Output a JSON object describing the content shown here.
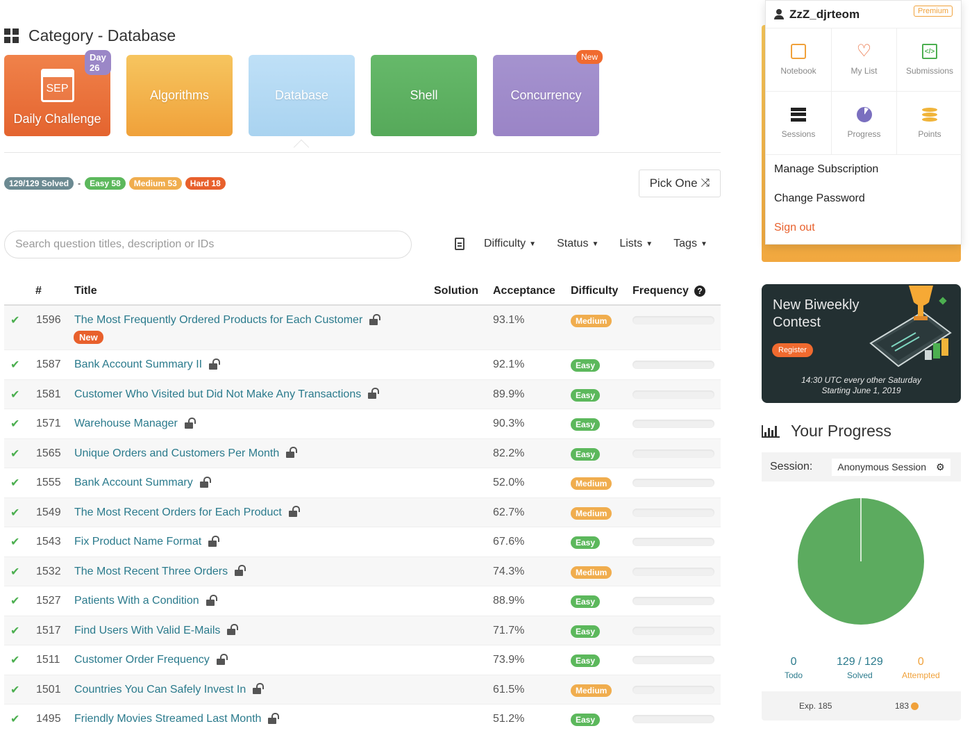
{
  "header": {
    "title": "Category - Database"
  },
  "cards": {
    "daily": {
      "label": "Daily Challenge",
      "calendar_text": "SEP",
      "badge": "Day 26"
    },
    "algorithms": "Algorithms",
    "database": "Database",
    "shell": "Shell",
    "concurrency": {
      "label": "Concurrency",
      "badge": "New"
    }
  },
  "stats": {
    "solved": "129/129 Solved",
    "separator": "-",
    "easy": "Easy 58",
    "medium": "Medium 53",
    "hard": "Hard 18"
  },
  "pick_one": {
    "label": "Pick One",
    "icon": "shuffle-icon"
  },
  "search": {
    "placeholder": "Search question titles, description or IDs"
  },
  "filters": [
    "Difficulty",
    "Status",
    "Lists",
    "Tags"
  ],
  "table": {
    "headers": {
      "num": "#",
      "title": "Title",
      "solution": "Solution",
      "acceptance": "Acceptance",
      "difficulty": "Difficulty",
      "frequency": "Frequency"
    },
    "new_label": "New",
    "rows": [
      {
        "id": "1596",
        "title": "The Most Frequently Ordered Products for Each Customer",
        "acceptance": "93.1%",
        "difficulty": "Medium",
        "is_new": true
      },
      {
        "id": "1587",
        "title": "Bank Account Summary II",
        "acceptance": "92.1%",
        "difficulty": "Easy"
      },
      {
        "id": "1581",
        "title": "Customer Who Visited but Did Not Make Any Transactions",
        "acceptance": "89.9%",
        "difficulty": "Easy"
      },
      {
        "id": "1571",
        "title": "Warehouse Manager",
        "acceptance": "90.3%",
        "difficulty": "Easy"
      },
      {
        "id": "1565",
        "title": "Unique Orders and Customers Per Month",
        "acceptance": "82.2%",
        "difficulty": "Easy"
      },
      {
        "id": "1555",
        "title": "Bank Account Summary",
        "acceptance": "52.0%",
        "difficulty": "Medium"
      },
      {
        "id": "1549",
        "title": "The Most Recent Orders for Each Product",
        "acceptance": "62.7%",
        "difficulty": "Medium"
      },
      {
        "id": "1543",
        "title": "Fix Product Name Format",
        "acceptance": "67.6%",
        "difficulty": "Easy"
      },
      {
        "id": "1532",
        "title": "The Most Recent Three Orders",
        "acceptance": "74.3%",
        "difficulty": "Medium"
      },
      {
        "id": "1527",
        "title": "Patients With a Condition",
        "acceptance": "88.9%",
        "difficulty": "Easy"
      },
      {
        "id": "1517",
        "title": "Find Users With Valid E-Mails",
        "acceptance": "71.7%",
        "difficulty": "Easy"
      },
      {
        "id": "1511",
        "title": "Customer Order Frequency",
        "acceptance": "73.9%",
        "difficulty": "Easy"
      },
      {
        "id": "1501",
        "title": "Countries You Can Safely Invest In",
        "acceptance": "61.5%",
        "difficulty": "Medium"
      },
      {
        "id": "1495",
        "title": "Friendly Movies Streamed Last Month",
        "acceptance": "51.2%",
        "difficulty": "Easy"
      }
    ]
  },
  "user_menu": {
    "username": "ZzZ_djrteom",
    "badge": "Premium",
    "tiles": [
      {
        "label": "Notebook",
        "icon": "notebook-icon"
      },
      {
        "label": "My List",
        "icon": "heart-icon"
      },
      {
        "label": "Submissions",
        "icon": "code-file-icon"
      },
      {
        "label": "Sessions",
        "icon": "sessions-icon"
      },
      {
        "label": "Progress",
        "icon": "pie-icon"
      },
      {
        "label": "Points",
        "icon": "coins-icon"
      }
    ],
    "links": [
      "Manage Subscription",
      "Change Password",
      "Sign out"
    ]
  },
  "contest": {
    "title_line1": "New Biweekly",
    "title_line2": "Contest",
    "register": "Register",
    "time_line1": "14:30 UTC every other Saturday",
    "time_line2": "Starting June 1, 2019"
  },
  "progress": {
    "title": "Your Progress",
    "session_label": "Session:",
    "session_value": "Anonymous Session",
    "todo": {
      "value": "0",
      "label": "Todo"
    },
    "solved": {
      "value": "129 / 129",
      "label": "Solved"
    },
    "attempted": {
      "value": "0",
      "label": "Attempted"
    },
    "exp": "Exp. 185",
    "points": "183",
    "solved_fraction": 1.0,
    "colors": {
      "solved": "#5cab5f",
      "divider": "#ffffff"
    }
  },
  "colors": {
    "link": "#2a7a8c",
    "easy": "#5cb85c",
    "medium": "#f0ad4e",
    "hard": "#e8602c"
  }
}
